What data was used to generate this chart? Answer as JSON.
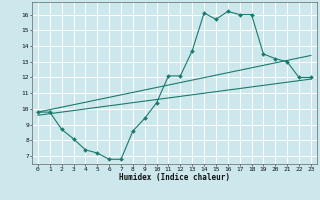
{
  "xlabel": "Humidex (Indice chaleur)",
  "ylabel": "",
  "bg_color": "#cce8ec",
  "grid_color": "#ffffff",
  "line_color": "#1a7a6e",
  "xlim": [
    -0.5,
    23.5
  ],
  "ylim": [
    6.5,
    16.8
  ],
  "xticks": [
    0,
    1,
    2,
    3,
    4,
    5,
    6,
    7,
    8,
    9,
    10,
    11,
    12,
    13,
    14,
    15,
    16,
    17,
    18,
    19,
    20,
    21,
    22,
    23
  ],
  "yticks": [
    7,
    8,
    9,
    10,
    11,
    12,
    13,
    14,
    15,
    16
  ],
  "zigzag_x": [
    0,
    1,
    2,
    3,
    4,
    5,
    6,
    7,
    8,
    9,
    10,
    11,
    12,
    13,
    14,
    15,
    16,
    17,
    18,
    19,
    20,
    21,
    22,
    23
  ],
  "zigzag_y": [
    9.8,
    9.8,
    8.7,
    8.1,
    7.4,
    7.2,
    6.8,
    6.8,
    8.6,
    9.4,
    10.4,
    12.1,
    12.1,
    13.7,
    16.1,
    15.7,
    16.2,
    16.0,
    16.0,
    13.5,
    13.2,
    13.0,
    12.0,
    12.0
  ],
  "line2_x": [
    0,
    23
  ],
  "line2_y": [
    9.8,
    13.4
  ],
  "line3_x": [
    0,
    23
  ],
  "line3_y": [
    9.6,
    11.9
  ]
}
